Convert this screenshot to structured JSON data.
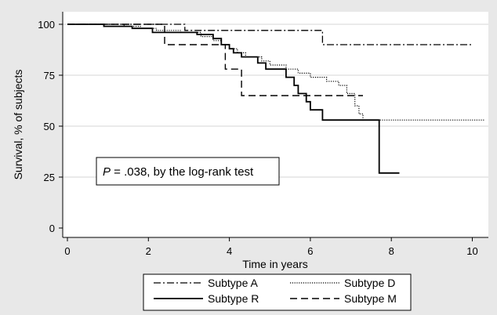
{
  "chart_data": {
    "type": "line",
    "subtype": "kaplan-meier step",
    "xlabel": "Time in years",
    "ylabel": "Survival, % of subjects",
    "xlim": [
      0,
      10.3
    ],
    "ylim": [
      0,
      100
    ],
    "xticks": [
      0,
      2,
      4,
      6,
      8,
      10
    ],
    "yticks": [
      0,
      25,
      50,
      75,
      100
    ],
    "grid": "horizontal",
    "annotation": {
      "prefix": "P",
      "text": " = .038, by the log-rank test"
    },
    "legend": {
      "position": "bottom",
      "columns": 2
    },
    "series": [
      {
        "name": "Subtype A",
        "style": "dash-dot",
        "points": [
          [
            0,
            100
          ],
          [
            2.9,
            100
          ],
          [
            2.9,
            97
          ],
          [
            6.3,
            97
          ],
          [
            6.3,
            90
          ],
          [
            10,
            90
          ]
        ]
      },
      {
        "name": "Subtype D",
        "style": "dotted",
        "points": [
          [
            0,
            100
          ],
          [
            1.4,
            100
          ],
          [
            1.4,
            99
          ],
          [
            1.8,
            99
          ],
          [
            1.8,
            98
          ],
          [
            2.2,
            98
          ],
          [
            2.2,
            97
          ],
          [
            2.8,
            97
          ],
          [
            2.8,
            96
          ],
          [
            3.3,
            96
          ],
          [
            3.3,
            94
          ],
          [
            3.6,
            94
          ],
          [
            3.6,
            92
          ],
          [
            3.8,
            92
          ],
          [
            3.8,
            90
          ],
          [
            4.0,
            90
          ],
          [
            4.0,
            88
          ],
          [
            4.2,
            88
          ],
          [
            4.2,
            86
          ],
          [
            4.4,
            86
          ],
          [
            4.4,
            84
          ],
          [
            4.8,
            84
          ],
          [
            4.8,
            82
          ],
          [
            5.0,
            82
          ],
          [
            5.0,
            80
          ],
          [
            5.4,
            80
          ],
          [
            5.4,
            78
          ],
          [
            5.7,
            78
          ],
          [
            5.7,
            76
          ],
          [
            6.0,
            76
          ],
          [
            6.0,
            74
          ],
          [
            6.4,
            74
          ],
          [
            6.4,
            72
          ],
          [
            6.7,
            72
          ],
          [
            6.7,
            70
          ],
          [
            6.9,
            70
          ],
          [
            6.9,
            66
          ],
          [
            7.1,
            66
          ],
          [
            7.1,
            60
          ],
          [
            7.2,
            60
          ],
          [
            7.2,
            56
          ],
          [
            7.3,
            56
          ],
          [
            7.3,
            53
          ],
          [
            10.3,
            53
          ]
        ]
      },
      {
        "name": "Subtype R",
        "style": "solid",
        "points": [
          [
            0,
            100
          ],
          [
            0.9,
            100
          ],
          [
            0.9,
            99
          ],
          [
            1.6,
            99
          ],
          [
            1.6,
            98
          ],
          [
            2.1,
            98
          ],
          [
            2.1,
            96
          ],
          [
            3.2,
            96
          ],
          [
            3.2,
            95
          ],
          [
            3.6,
            95
          ],
          [
            3.6,
            93
          ],
          [
            3.8,
            93
          ],
          [
            3.8,
            90
          ],
          [
            4.0,
            90
          ],
          [
            4.0,
            88
          ],
          [
            4.1,
            88
          ],
          [
            4.1,
            86
          ],
          [
            4.3,
            86
          ],
          [
            4.3,
            84
          ],
          [
            4.7,
            84
          ],
          [
            4.7,
            81
          ],
          [
            4.9,
            81
          ],
          [
            4.9,
            78
          ],
          [
            5.4,
            78
          ],
          [
            5.4,
            74
          ],
          [
            5.6,
            74
          ],
          [
            5.6,
            70
          ],
          [
            5.7,
            70
          ],
          [
            5.7,
            66
          ],
          [
            5.9,
            66
          ],
          [
            5.9,
            62
          ],
          [
            6.0,
            62
          ],
          [
            6.0,
            58
          ],
          [
            6.3,
            58
          ],
          [
            6.3,
            53
          ],
          [
            7.7,
            53
          ],
          [
            7.7,
            27
          ],
          [
            8.2,
            27
          ]
        ]
      },
      {
        "name": "Subtype M",
        "style": "dashed",
        "points": [
          [
            0,
            100
          ],
          [
            2.4,
            100
          ],
          [
            2.4,
            90
          ],
          [
            3.9,
            90
          ],
          [
            3.9,
            78
          ],
          [
            4.3,
            78
          ],
          [
            4.3,
            65
          ],
          [
            7.3,
            65
          ]
        ]
      }
    ]
  }
}
